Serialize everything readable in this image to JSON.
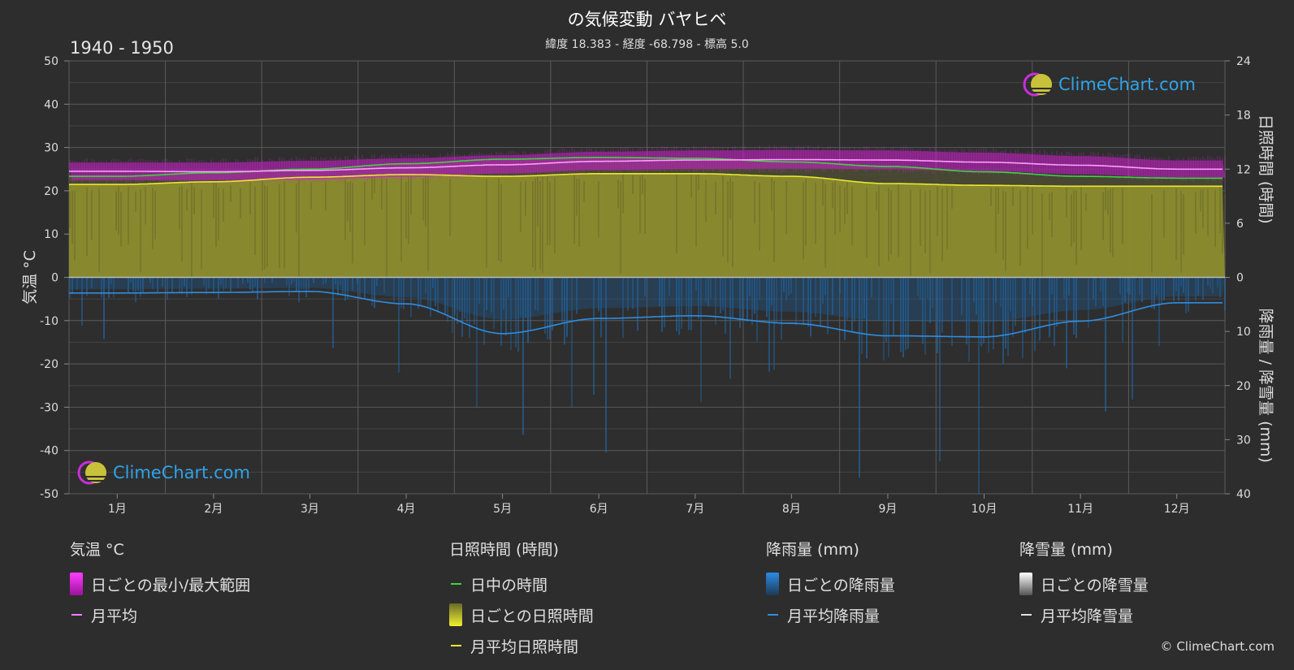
{
  "header": {
    "title": "の気候変動 バヤヒベ",
    "subtitle": "緯度 18.383 - 経度 -68.798 - 標高 5.0",
    "period": "1940 - 1950"
  },
  "logo": {
    "text": "ClimeChart.com"
  },
  "copyright": "© ClimeChart.com",
  "chart_data": {
    "type": "area",
    "categories": [
      "1月",
      "2月",
      "3月",
      "4月",
      "5月",
      "6月",
      "7月",
      "8月",
      "9月",
      "10月",
      "11月",
      "12月"
    ],
    "y_left": {
      "label": "気温 °C",
      "range": [
        -50,
        50
      ],
      "ticks": [
        "50",
        "40",
        "30",
        "20",
        "10",
        "0",
        "-10",
        "-20",
        "-30",
        "-40",
        "-50"
      ]
    },
    "y_right_top": {
      "label": "日照時間 (時間)",
      "range": [
        0,
        24
      ],
      "ticks": [
        "24",
        "18",
        "12",
        "6",
        "0"
      ]
    },
    "y_right_bottom": {
      "label": "降雨量 / 降雪量 (mm)",
      "range": [
        0,
        40
      ],
      "ticks": [
        "10",
        "20",
        "30",
        "40"
      ]
    },
    "grid": true,
    "series": [
      {
        "name": "日中の時間",
        "unit": "hours",
        "color": "#3fd33f",
        "values": [
          11.2,
          11.6,
          12.0,
          12.6,
          13.1,
          13.3,
          13.2,
          12.8,
          12.3,
          11.7,
          11.2,
          11.0
        ]
      },
      {
        "name": "月平均日照時間",
        "unit": "hours",
        "color": "#e8e831",
        "values": [
          10.3,
          10.6,
          11.1,
          11.4,
          11.2,
          11.5,
          11.5,
          11.2,
          10.4,
          10.2,
          10.1,
          10.1
        ]
      },
      {
        "name": "月平均",
        "unit": "°C",
        "color": "#ff7fff",
        "values": [
          24.5,
          24.4,
          24.7,
          25.3,
          26.0,
          26.8,
          27.1,
          27.2,
          27.1,
          26.6,
          25.9,
          25.0
        ]
      },
      {
        "name": "月平均降雨量",
        "unit": "mm",
        "color": "#2e8de0",
        "values": [
          2.9,
          2.8,
          2.6,
          4.9,
          10.4,
          7.6,
          7.1,
          8.5,
          10.8,
          11.0,
          8.1,
          4.7
        ]
      }
    ],
    "temp_range": {
      "name": "日ごとの最小/最大範囲",
      "min": [
        22.5,
        22.4,
        22.6,
        23.2,
        24.0,
        24.8,
        25.0,
        25.1,
        25.0,
        24.5,
        23.8,
        23.0
      ],
      "max": [
        26.5,
        26.5,
        26.9,
        27.5,
        28.2,
        29.0,
        29.3,
        29.4,
        29.3,
        28.8,
        28.0,
        27.0
      ]
    }
  },
  "legend": {
    "temperature": {
      "title": "気温 °C",
      "items": [
        "日ごとの最小/最大範囲",
        "月平均"
      ]
    },
    "sunshine": {
      "title": "日照時間 (時間)",
      "items": [
        "日中の時間",
        "日ごとの日照時間",
        "月平均日照時間"
      ]
    },
    "rain": {
      "title": "降雨量 (mm)",
      "items": [
        "日ごとの降雨量",
        "月平均降雨量"
      ]
    },
    "snow": {
      "title": "降雪量 (mm)",
      "items": [
        "日ごとの降雪量",
        "月平均降雪量"
      ]
    }
  },
  "colors": {
    "background": "#2d2d2d",
    "temp_range": "#d21fd2",
    "temp_avg": "#ff7fff",
    "daylight": "#3fd33f",
    "sunshine_fill": "#8c8c2e",
    "sunshine_avg": "#e8e831",
    "rain": "#2e8de0",
    "snow": "#e0e0e0"
  }
}
